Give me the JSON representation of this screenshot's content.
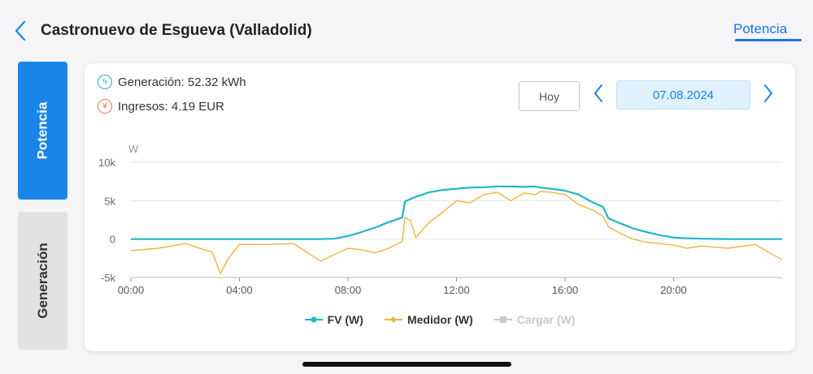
{
  "header": {
    "title": "Castronuevo de Esgueva (Valladolid)",
    "tab": "Potencia"
  },
  "side_tabs": [
    {
      "label": "Potencia",
      "active": true
    },
    {
      "label": "Generación",
      "active": false
    }
  ],
  "stats": {
    "generation_label": "Generación:",
    "generation_value": "52.32 kWh",
    "income_label": "Ingresos:",
    "income_value": "4.19 EUR"
  },
  "date_nav": {
    "today_label": "Hoy",
    "date": "07.08.2024"
  },
  "colors": {
    "accent": "#1a85e8",
    "fv": "#1fb6c8",
    "medidor": "#f0b43c",
    "cargar": "#c8c8c8"
  },
  "chart_data": {
    "type": "line",
    "ylabel": "W",
    "ylim": [
      -5000,
      10000
    ],
    "yticks": [
      "10k",
      "5k",
      "0",
      "-5k"
    ],
    "ytick_values": [
      10000,
      5000,
      0,
      -5000
    ],
    "xlim": [
      "00:00",
      "24:00"
    ],
    "xticks": [
      "00:00",
      "04:00",
      "08:00",
      "12:00",
      "16:00",
      "20:00"
    ],
    "x_hours": [
      0,
      1,
      2,
      3,
      3.3,
      3.6,
      4,
      5,
      6,
      7,
      7.5,
      8,
      8.5,
      9,
      9.5,
      10,
      10.1,
      10.3,
      10.5,
      11,
      11.5,
      12,
      12.5,
      13,
      13.5,
      14,
      14.5,
      14.9,
      15.1,
      15.5,
      16,
      16.5,
      17,
      17.4,
      17.6,
      18,
      18.5,
      19,
      19.5,
      20,
      20.5,
      21,
      22,
      23,
      24
    ],
    "series": [
      {
        "name": "FV (W)",
        "values": [
          0,
          0,
          0,
          0,
          0,
          0,
          0,
          0,
          0,
          0,
          50,
          400,
          900,
          1500,
          2200,
          2800,
          4900,
          5200,
          5500,
          6100,
          6400,
          6550,
          6700,
          6750,
          6850,
          6850,
          6800,
          6850,
          6700,
          6550,
          6300,
          5800,
          4800,
          4200,
          2700,
          2100,
          1400,
          900,
          500,
          200,
          100,
          50,
          0,
          0,
          0
        ]
      },
      {
        "name": "Medidor (W)",
        "values": [
          -1500,
          -1200,
          -600,
          -1700,
          -4500,
          -2500,
          -700,
          -700,
          -600,
          -2900,
          -2000,
          -1200,
          -1400,
          -1800,
          -1200,
          -300,
          2800,
          2400,
          200,
          2200,
          3500,
          5000,
          4700,
          5800,
          6100,
          5000,
          6000,
          5800,
          6200,
          6100,
          5800,
          4500,
          3800,
          3000,
          1600,
          800,
          0,
          -400,
          -600,
          -800,
          -1200,
          -900,
          -1200,
          -700,
          -2700
        ]
      },
      {
        "name": "Cargar (W)",
        "values": []
      }
    ]
  }
}
